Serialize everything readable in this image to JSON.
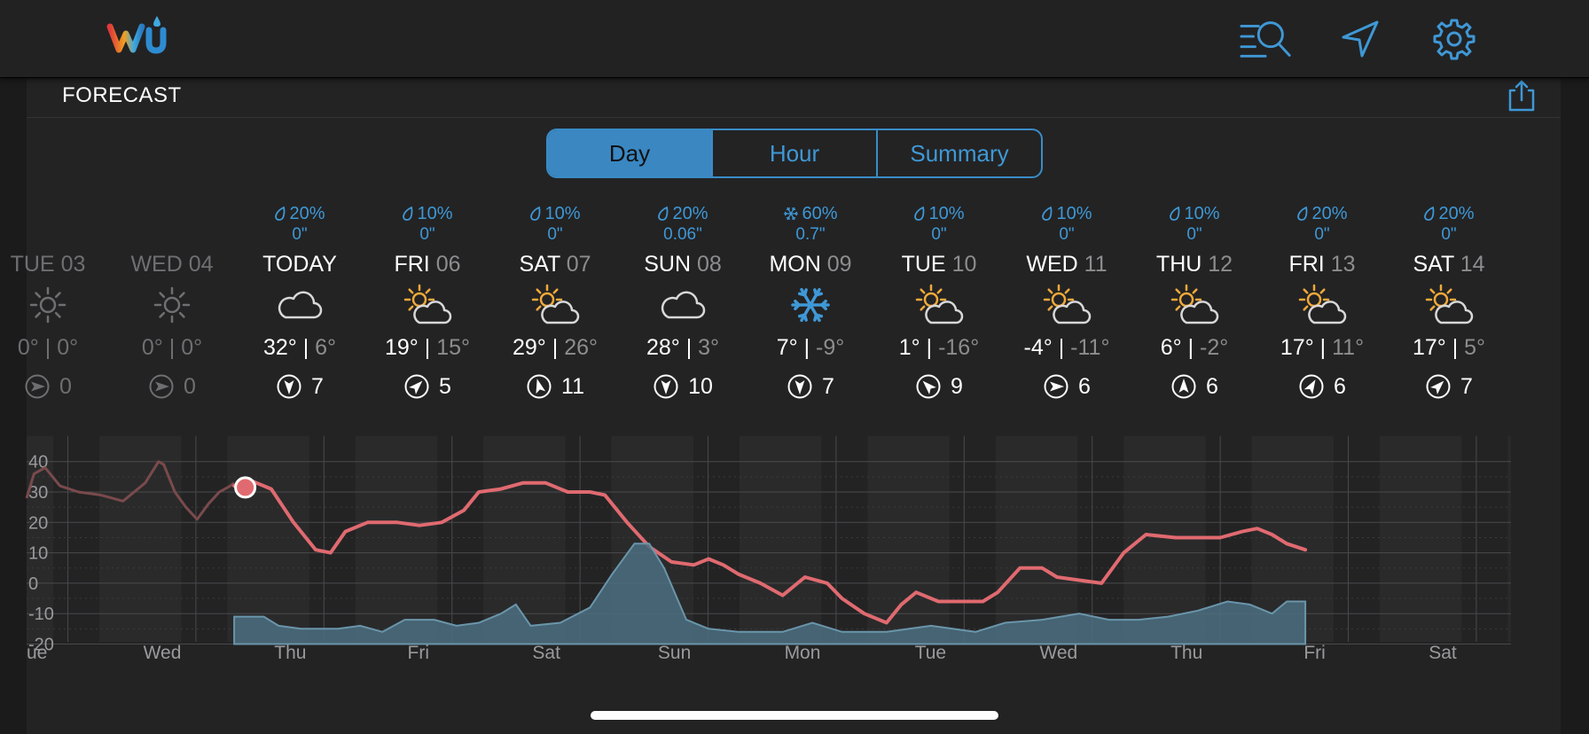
{
  "header": {
    "logo": "wu",
    "icons": [
      "search-list-icon",
      "location-arrow-icon",
      "gear-icon"
    ]
  },
  "panel": {
    "title": "FORECAST"
  },
  "tabs": [
    {
      "label": "Day",
      "active": true
    },
    {
      "label": "Hour",
      "active": false
    },
    {
      "label": "Summary",
      "active": false
    }
  ],
  "days": [
    {
      "name": "TUE",
      "num": "03",
      "label": "TUE 03",
      "precip": "",
      "amount": "",
      "icon": "sun-dim-icon",
      "hi": "0°",
      "lo": "0°",
      "wind": "0",
      "past": true
    },
    {
      "name": "WED",
      "num": "04",
      "precip": "",
      "amount": "",
      "icon": "sun-dim-icon",
      "hi": "0°",
      "lo": "0°",
      "wind": "0",
      "past": true
    },
    {
      "name": "TODAY",
      "num": "",
      "precip": "20%",
      "precip_icon": "raindrop-icon",
      "amount": "0\"",
      "icon": "cloud-icon",
      "hi": "32°",
      "lo": "6°",
      "wind": "7",
      "wind_dir": 180
    },
    {
      "name": "FRI",
      "num": "06",
      "precip": "10%",
      "precip_icon": "raindrop-icon",
      "amount": "0\"",
      "icon": "partly-cloudy-icon",
      "hi": "19°",
      "lo": "15°",
      "wind": "5",
      "wind_dir": 45
    },
    {
      "name": "SAT",
      "num": "07",
      "precip": "10%",
      "precip_icon": "raindrop-icon",
      "amount": "0\"",
      "icon": "partly-cloudy-icon",
      "hi": "29°",
      "lo": "26°",
      "wind": "11",
      "wind_dir": -15
    },
    {
      "name": "SUN",
      "num": "08",
      "precip": "20%",
      "precip_icon": "raindrop-icon",
      "amount": "0.06\"",
      "icon": "cloud-icon",
      "hi": "28°",
      "lo": "3°",
      "wind": "10",
      "wind_dir": 180
    },
    {
      "name": "MON",
      "num": "09",
      "precip": "60%",
      "precip_icon": "snowflake-icon",
      "amount": "0.7\"",
      "icon": "snowflake-icon",
      "hi": "7°",
      "lo": "-9°",
      "wind": "7",
      "wind_dir": 180
    },
    {
      "name": "TUE",
      "num": "10",
      "precip": "10%",
      "precip_icon": "raindrop-icon",
      "amount": "0\"",
      "icon": "partly-cloudy-icon",
      "hi": "1°",
      "lo": "-16°",
      "wind": "9",
      "wind_dir": -45
    },
    {
      "name": "WED",
      "num": "11",
      "precip": "10%",
      "precip_icon": "raindrop-icon",
      "amount": "0\"",
      "icon": "partly-cloudy-icon",
      "hi": "-4°",
      "lo": "-11°",
      "wind": "6",
      "wind_dir": 90
    },
    {
      "name": "THU",
      "num": "12",
      "precip": "10%",
      "precip_icon": "raindrop-icon",
      "amount": "0\"",
      "icon": "partly-cloudy-icon",
      "hi": "6°",
      "lo": "-2°",
      "wind": "6",
      "wind_dir": 0
    },
    {
      "name": "FRI",
      "num": "13",
      "precip": "20%",
      "precip_icon": "raindrop-icon",
      "amount": "0\"",
      "icon": "partly-cloudy-icon",
      "hi": "17°",
      "lo": "11°",
      "wind": "6",
      "wind_dir": 30
    },
    {
      "name": "SAT",
      "num": "14",
      "precip": "20%",
      "precip_icon": "raindrop-icon",
      "amount": "0\"",
      "icon": "partly-cloudy-icon",
      "hi": "17°",
      "lo": "5°",
      "wind": "7",
      "wind_dir": 45
    }
  ],
  "colors": {
    "accent": "#3f98d6",
    "temp_line": "#e06a70",
    "precip_fill": "#4b6e80",
    "background": "#232324"
  },
  "chart_data": {
    "type": "line",
    "title": "",
    "xlabel": "",
    "ylabel": "",
    "ylim": [
      -20,
      45
    ],
    "y_ticks": [
      "40",
      "30",
      "20",
      "10",
      "0",
      "-10",
      "-20"
    ],
    "x_ticks": [
      "Tue",
      "Wed",
      "Thu",
      "Fri",
      "Sat",
      "Sun",
      "Mon",
      "Tue",
      "Wed",
      "Thu",
      "Fri",
      "Sat"
    ],
    "grid": true,
    "current_day": 2.4,
    "series": [
      {
        "kind": "history",
        "color": "#7a4a4c",
        "points": [
          [
            0.0,
            28
          ],
          [
            0.1,
            36
          ],
          [
            0.25,
            38
          ],
          [
            0.45,
            32
          ],
          [
            0.7,
            30
          ],
          [
            1.0,
            29
          ],
          [
            1.3,
            27
          ],
          [
            1.6,
            33
          ],
          [
            1.78,
            40
          ],
          [
            1.85,
            39
          ],
          [
            2.0,
            30
          ],
          [
            2.15,
            25
          ],
          [
            2.3,
            21
          ],
          [
            2.45,
            26
          ],
          [
            2.6,
            30
          ],
          [
            2.75,
            32
          ],
          [
            2.8,
            33
          ]
        ]
      },
      {
        "kind": "temperature",
        "color": "#e06a70",
        "points": [
          [
            2.8,
            32
          ],
          [
            3.0,
            34
          ],
          [
            3.3,
            31
          ],
          [
            3.6,
            20
          ],
          [
            3.9,
            11
          ],
          [
            4.1,
            10
          ],
          [
            4.3,
            17
          ],
          [
            4.6,
            20
          ],
          [
            5.0,
            20
          ],
          [
            5.3,
            19
          ],
          [
            5.6,
            20
          ],
          [
            5.9,
            24
          ],
          [
            6.1,
            30
          ],
          [
            6.4,
            31
          ],
          [
            6.7,
            33
          ],
          [
            7.0,
            33
          ],
          [
            7.3,
            30
          ],
          [
            7.6,
            30
          ],
          [
            7.8,
            29
          ],
          [
            8.1,
            20
          ],
          [
            8.4,
            12
          ],
          [
            8.7,
            7
          ],
          [
            9.0,
            6
          ],
          [
            9.2,
            8
          ],
          [
            9.4,
            6
          ],
          [
            9.6,
            3
          ],
          [
            9.9,
            0
          ],
          [
            10.2,
            -4
          ],
          [
            10.5,
            2
          ],
          [
            10.8,
            0
          ],
          [
            11.0,
            -5
          ],
          [
            11.3,
            -10
          ],
          [
            11.6,
            -13
          ],
          [
            11.8,
            -7
          ],
          [
            12.0,
            -3
          ],
          [
            12.3,
            -6
          ],
          [
            12.6,
            -6
          ],
          [
            12.9,
            -6
          ],
          [
            13.1,
            -3
          ],
          [
            13.4,
            5
          ],
          [
            13.7,
            5
          ],
          [
            13.9,
            2
          ],
          [
            14.2,
            1
          ],
          [
            14.5,
            0
          ],
          [
            14.8,
            10
          ],
          [
            15.1,
            16
          ],
          [
            15.5,
            15
          ],
          [
            15.8,
            15
          ],
          [
            16.1,
            15
          ],
          [
            16.4,
            17
          ],
          [
            16.6,
            18
          ],
          [
            16.8,
            16
          ],
          [
            17.0,
            13
          ],
          [
            17.25,
            11
          ]
        ]
      },
      {
        "kind": "precipitation",
        "color": "#4b6e80",
        "points": [
          [
            2.8,
            -20
          ],
          [
            2.8,
            -11
          ],
          [
            3.2,
            -11
          ],
          [
            3.4,
            -14
          ],
          [
            3.7,
            -15
          ],
          [
            4.2,
            -15
          ],
          [
            4.5,
            -14
          ],
          [
            4.8,
            -16
          ],
          [
            5.1,
            -12
          ],
          [
            5.5,
            -12
          ],
          [
            5.8,
            -14
          ],
          [
            6.1,
            -13
          ],
          [
            6.4,
            -10
          ],
          [
            6.6,
            -7
          ],
          [
            6.8,
            -14
          ],
          [
            7.2,
            -13
          ],
          [
            7.6,
            -8
          ],
          [
            7.9,
            3
          ],
          [
            8.2,
            13
          ],
          [
            8.4,
            13
          ],
          [
            8.6,
            5
          ],
          [
            8.9,
            -12
          ],
          [
            9.2,
            -15
          ],
          [
            9.6,
            -16
          ],
          [
            10.2,
            -16
          ],
          [
            10.6,
            -13
          ],
          [
            11.0,
            -16
          ],
          [
            11.6,
            -16
          ],
          [
            12.2,
            -14
          ],
          [
            12.8,
            -16
          ],
          [
            13.2,
            -13
          ],
          [
            13.7,
            -12
          ],
          [
            14.2,
            -10
          ],
          [
            14.6,
            -12
          ],
          [
            15.0,
            -12
          ],
          [
            15.4,
            -11
          ],
          [
            15.8,
            -9
          ],
          [
            16.2,
            -6
          ],
          [
            16.5,
            -7
          ],
          [
            16.8,
            -10
          ],
          [
            17.0,
            -6
          ],
          [
            17.25,
            -6
          ],
          [
            17.25,
            -20
          ]
        ]
      }
    ]
  }
}
